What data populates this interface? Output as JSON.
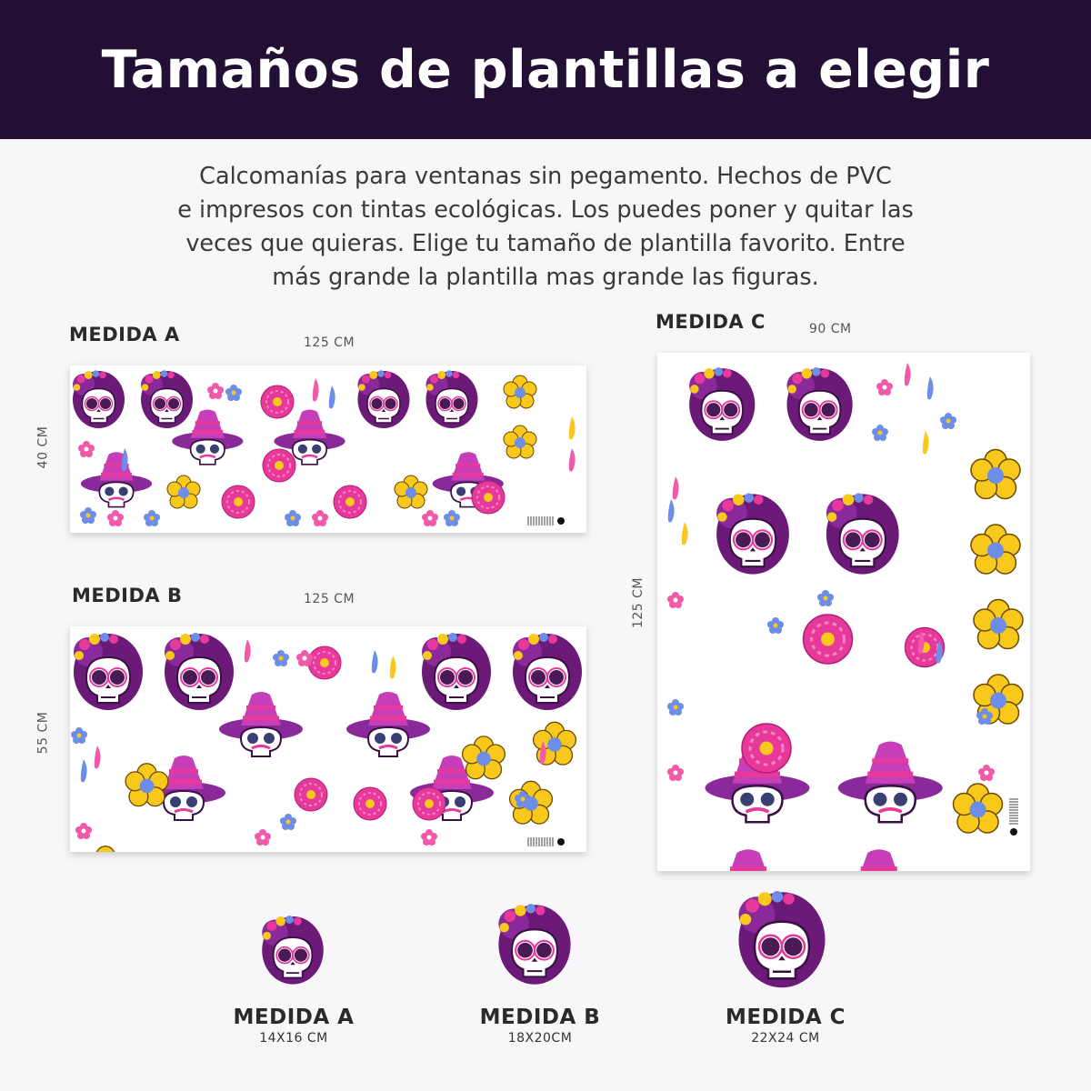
{
  "header": {
    "title": "Tamaños de plantillas a elegir"
  },
  "description": {
    "lines": [
      "Calcomanías para ventanas sin pegamento. Hechos de PVC",
      "e impresos con tintas ecológicas. Los puedes poner y quitar las",
      "veces que quieras. Elige tu tamaño de plantilla favorito. Entre",
      "más grande la plantilla mas grande las figuras."
    ]
  },
  "templates": {
    "a": {
      "label": "MEDIDA A",
      "width": "125 CM",
      "height": "40 CM"
    },
    "b": {
      "label": "MEDIDA B",
      "width": "125 CM",
      "height": "55 CM"
    },
    "c": {
      "label": "MEDIDA C",
      "width": "90 CM",
      "height": "125 CM"
    }
  },
  "samples": [
    {
      "label": "MEDIDA A",
      "size": "14X16 CM"
    },
    {
      "label": "MEDIDA B",
      "size": "18X20CM"
    },
    {
      "label": "MEDIDA C",
      "size": "22X24 CM"
    }
  ],
  "colors": {
    "banner": "#230f33",
    "purple": "#7a1f86",
    "magenta": "#e6399b",
    "yellow": "#f8c81c",
    "blue": "#6d8ee8",
    "pink": "#f05aa8"
  },
  "icons": [
    "catrina-skull",
    "sombrero-skull",
    "marigold-flower",
    "pink-daisy",
    "small-blue-flower",
    "swirl-petal"
  ]
}
